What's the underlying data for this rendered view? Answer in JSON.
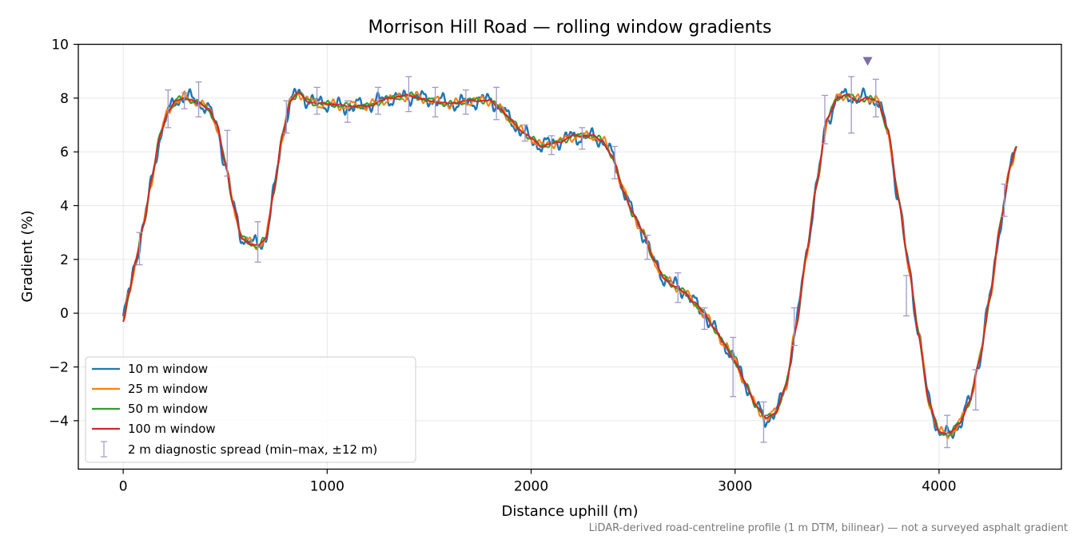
{
  "chart_data": {
    "type": "line",
    "title": "Morrison Hill Road — rolling window gradients",
    "xlabel": "Distance uphill (m)",
    "ylabel": "Gradient (%)",
    "xlim": [
      -220,
      4600
    ],
    "ylim": [
      -5.8,
      10
    ],
    "xticks": [
      0,
      1000,
      2000,
      3000,
      4000
    ],
    "yticks": [
      -4,
      -2,
      0,
      2,
      4,
      6,
      8,
      10
    ],
    "xtick_labels": [
      "0",
      "1000",
      "2000",
      "3000",
      "4000"
    ],
    "ytick_labels": [
      "−4",
      "−2",
      "0",
      "2",
      "4",
      "6",
      "8",
      "10"
    ],
    "grid": true,
    "legend_position": "lower-left",
    "footnote": "LiDAR-derived road-centreline profile (1 m DTM, bilinear) — not a surveyed asphalt gradient",
    "base_profile": {
      "x": [
        0,
        30,
        60,
        100,
        140,
        180,
        220,
        260,
        300,
        340,
        380,
        420,
        460,
        500,
        540,
        580,
        620,
        660,
        700,
        740,
        780,
        820,
        860,
        900,
        950,
        1000,
        1100,
        1200,
        1300,
        1400,
        1500,
        1600,
        1700,
        1800,
        1850,
        1900,
        1950,
        2000,
        2050,
        2100,
        2150,
        2200,
        2250,
        2300,
        2350,
        2400,
        2450,
        2500,
        2550,
        2600,
        2650,
        2700,
        2750,
        2800,
        2850,
        2900,
        2950,
        3000,
        3050,
        3100,
        3150,
        3200,
        3250,
        3300,
        3350,
        3400,
        3450,
        3500,
        3550,
        3600,
        3650,
        3700,
        3750,
        3800,
        3850,
        3900,
        3950,
        4000,
        4050,
        4100,
        4150,
        4200,
        4250,
        4300,
        4350,
        4380
      ],
      "y": [
        -0.3,
        0.8,
        1.9,
        3.3,
        5.0,
        6.6,
        7.5,
        7.9,
        8.0,
        7.9,
        7.8,
        7.6,
        7.0,
        5.6,
        4.0,
        2.8,
        2.6,
        2.5,
        2.8,
        4.6,
        6.6,
        7.9,
        8.2,
        7.9,
        7.8,
        7.8,
        7.7,
        7.7,
        8.0,
        8.1,
        7.9,
        7.8,
        7.9,
        7.9,
        7.6,
        7.2,
        6.8,
        6.5,
        6.2,
        6.3,
        6.4,
        6.6,
        6.6,
        6.6,
        6.4,
        5.8,
        4.6,
        3.7,
        3.0,
        2.0,
        1.3,
        1.0,
        0.8,
        0.4,
        0.0,
        -0.6,
        -1.2,
        -1.8,
        -2.6,
        -3.4,
        -3.9,
        -3.7,
        -2.7,
        -0.5,
        2.2,
        4.8,
        7.2,
        8.0,
        8.1,
        7.9,
        8.0,
        7.9,
        6.8,
        4.3,
        1.8,
        -0.8,
        -3.3,
        -4.4,
        -4.5,
        -4.1,
        -3.3,
        -1.7,
        0.6,
        3.3,
        5.5,
        6.2
      ]
    },
    "series": [
      {
        "name": "10 m window",
        "color": "#1f77b4",
        "noise": 0.32,
        "smooth_m": 10
      },
      {
        "name": "25 m window",
        "color": "#ff7f0e",
        "noise": 0.2,
        "smooth_m": 25
      },
      {
        "name": "50 m window",
        "color": "#2ca02c",
        "noise": 0.12,
        "smooth_m": 50
      },
      {
        "name": "100 m window",
        "color": "#d62728",
        "noise": 0.04,
        "smooth_m": 100
      }
    ],
    "error_bars": {
      "name": "2 m diagnostic spread (min–max, ±12 m)",
      "color": "#9e9ac8",
      "points": [
        {
          "x": 80,
          "low": 1.8,
          "high": 3.0
        },
        {
          "x": 220,
          "low": 6.9,
          "high": 8.3
        },
        {
          "x": 300,
          "low": 7.6,
          "high": 8.2
        },
        {
          "x": 370,
          "low": 7.3,
          "high": 8.6
        },
        {
          "x": 510,
          "low": 5.1,
          "high": 6.8
        },
        {
          "x": 660,
          "low": 1.9,
          "high": 3.4
        },
        {
          "x": 800,
          "low": 6.7,
          "high": 7.9
        },
        {
          "x": 950,
          "low": 7.4,
          "high": 8.4
        },
        {
          "x": 1100,
          "low": 7.1,
          "high": 7.9
        },
        {
          "x": 1250,
          "low": 7.4,
          "high": 8.4
        },
        {
          "x": 1400,
          "low": 7.5,
          "high": 8.8
        },
        {
          "x": 1530,
          "low": 7.3,
          "high": 8.4
        },
        {
          "x": 1680,
          "low": 7.4,
          "high": 8.3
        },
        {
          "x": 1830,
          "low": 7.2,
          "high": 8.4
        },
        {
          "x": 1970,
          "low": 6.4,
          "high": 7.0
        },
        {
          "x": 2100,
          "low": 5.9,
          "high": 6.6
        },
        {
          "x": 2250,
          "low": 6.1,
          "high": 6.9
        },
        {
          "x": 2410,
          "low": 5.0,
          "high": 6.2
        },
        {
          "x": 2570,
          "low": 2.0,
          "high": 2.9
        },
        {
          "x": 2720,
          "low": 0.4,
          "high": 1.5
        },
        {
          "x": 2850,
          "low": -0.6,
          "high": 0.2
        },
        {
          "x": 2990,
          "low": -3.1,
          "high": -0.9
        },
        {
          "x": 3140,
          "low": -4.8,
          "high": -3.3
        },
        {
          "x": 3290,
          "low": -1.2,
          "high": 0.2
        },
        {
          "x": 3440,
          "low": 6.3,
          "high": 8.1
        },
        {
          "x": 3570,
          "low": 6.7,
          "high": 8.8
        },
        {
          "x": 3690,
          "low": 7.3,
          "high": 8.7
        },
        {
          "x": 3840,
          "low": -0.1,
          "high": 1.4
        },
        {
          "x": 4040,
          "low": -5.0,
          "high": -3.8
        },
        {
          "x": 4180,
          "low": -3.6,
          "high": -2.1
        },
        {
          "x": 4320,
          "low": 3.6,
          "high": 4.8
        }
      ]
    },
    "marker": {
      "x": 3650,
      "y": 9.35,
      "shape": "triangle-down",
      "color": "#7b6fa6"
    }
  }
}
